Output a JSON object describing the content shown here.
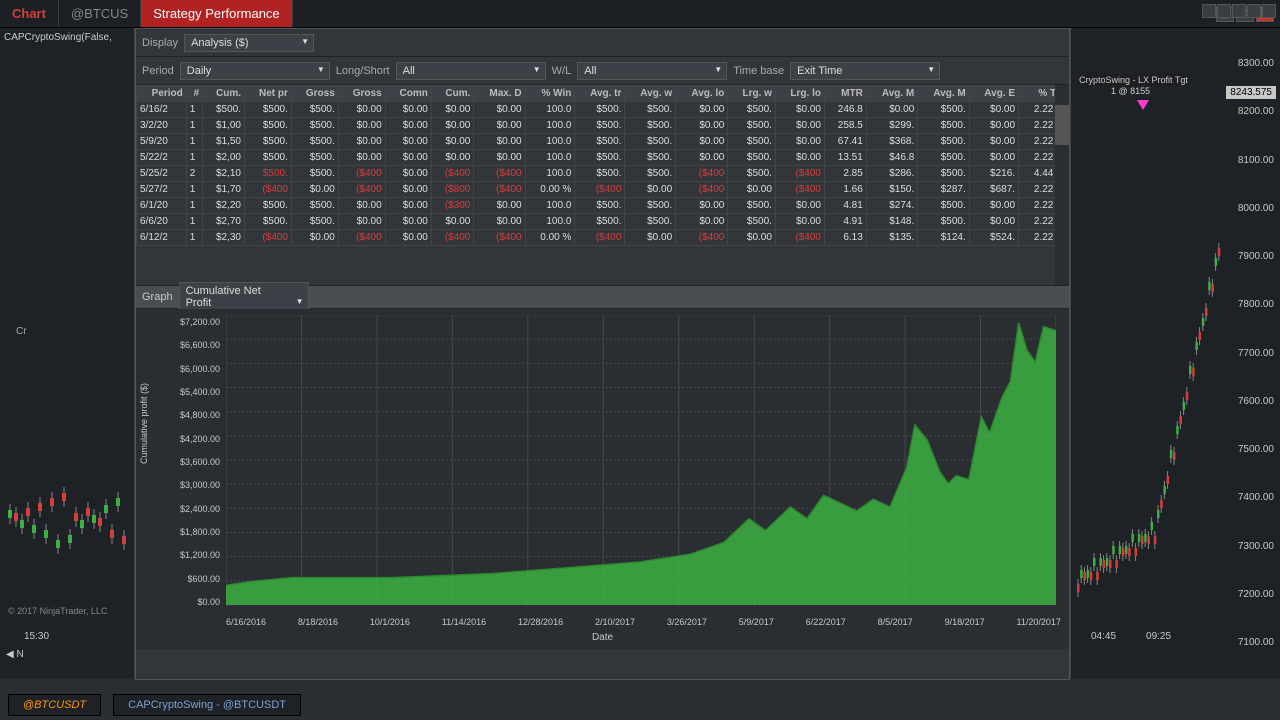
{
  "titlebar": {
    "chart_tab": "Chart",
    "symbol_tab": "@BTCUS",
    "active_tab": "Strategy Performance"
  },
  "left": {
    "indicator": "CAPCryptoSwing(False,",
    "copyright": "© 2017 NinjaTrader, LLC",
    "time": "15:30",
    "nav_sym": "N"
  },
  "controls": {
    "display_label": "Display",
    "display_value": "Analysis ($)",
    "period_label": "Period",
    "period_value": "Daily",
    "ls_label": "Long/Short",
    "ls_value": "All",
    "wl_label": "W/L",
    "wl_value": "All",
    "tb_label": "Time base",
    "tb_value": "Exit Time",
    "graph_label": "Graph",
    "graph_value": "Cumulative Net Profit"
  },
  "table": {
    "headers": [
      "Period",
      "#",
      "Cum.",
      "Net pr",
      "Gross",
      "Gross",
      "Comn",
      "Cum.",
      "Max. D",
      "% Win",
      "Avg. tr",
      "Avg. w",
      "Avg. lo",
      "Lrg. w",
      "Lrg. lo",
      "MTR",
      "Avg. M",
      "Avg. M",
      "Avg. E",
      "% Tra"
    ],
    "rows": [
      [
        "6/16/2",
        "1",
        "$500.",
        "$500.",
        "$500.",
        "$0.00",
        "$0.00",
        "$0.00",
        "$0.00",
        "100.0",
        "$500.",
        "$500.",
        "$0.00",
        "$500.",
        "$0.00",
        "246.8",
        "$0.00",
        "$500.",
        "$0.00",
        "2.22 %"
      ],
      [
        "3/2/20",
        "1",
        "$1,00",
        "$500.",
        "$500.",
        "$0.00",
        "$0.00",
        "$0.00",
        "$0.00",
        "100.0",
        "$500.",
        "$500.",
        "$0.00",
        "$500.",
        "$0.00",
        "258.5",
        "$299.",
        "$500.",
        "$0.00",
        "2.22 %"
      ],
      [
        "5/9/20",
        "1",
        "$1,50",
        "$500.",
        "$500.",
        "$0.00",
        "$0.00",
        "$0.00",
        "$0.00",
        "100.0",
        "$500.",
        "$500.",
        "$0.00",
        "$500.",
        "$0.00",
        "67.41",
        "$368.",
        "$500.",
        "$0.00",
        "2.22 %"
      ],
      [
        "5/22/2",
        "1",
        "$2,00",
        "$500.",
        "$500.",
        "$0.00",
        "$0.00",
        "$0.00",
        "$0.00",
        "100.0",
        "$500.",
        "$500.",
        "$0.00",
        "$500.",
        "$0.00",
        "13.51",
        "$46.8",
        "$500.",
        "$0.00",
        "2.22 %"
      ],
      [
        "5/25/2",
        "2",
        "$2,10",
        "$500.",
        "$500.",
        "($400",
        "$0.00",
        "($400",
        "($400",
        "100.0",
        "$500.",
        "$500.",
        "($400",
        "$500.",
        "($400",
        "2.85",
        "$286.",
        "$500.",
        "$216.",
        "4.44 %"
      ],
      [
        "5/27/2",
        "1",
        "$1,70",
        "($400",
        "$0.00",
        "($400",
        "$0.00",
        "($800",
        "($400",
        "0.00 %",
        "($400",
        "$0.00",
        "($400",
        "$0.00",
        "($400",
        "1.66",
        "$150.",
        "$287.",
        "$687.",
        "2.22 %"
      ],
      [
        "6/1/20",
        "1",
        "$2,20",
        "$500.",
        "$500.",
        "$0.00",
        "$0.00",
        "($300",
        "$0.00",
        "100.0",
        "$500.",
        "$500.",
        "$0.00",
        "$500.",
        "$0.00",
        "4.81",
        "$274.",
        "$500.",
        "$0.00",
        "2.22 %"
      ],
      [
        "6/6/20",
        "1",
        "$2,70",
        "$500.",
        "$500.",
        "$0.00",
        "$0.00",
        "$0.00",
        "$0.00",
        "100.0",
        "$500.",
        "$500.",
        "$0.00",
        "$500.",
        "$0.00",
        "4.91",
        "$148.",
        "$500.",
        "$0.00",
        "2.22 %"
      ],
      [
        "6/12/2",
        "1",
        "$2,30",
        "($400",
        "$0.00",
        "($400",
        "$0.00",
        "($400",
        "($400",
        "0.00 %",
        "($400",
        "$0.00",
        "($400",
        "$0.00",
        "($400",
        "6.13",
        "$135.",
        "$124.",
        "$524.",
        "2.22 %"
      ]
    ],
    "neg_cells": {
      "4": [
        3,
        5,
        7,
        8,
        12,
        14
      ],
      "5": [
        3,
        5,
        7,
        8,
        10,
        12,
        14
      ],
      "6": [
        7
      ],
      "8": [
        3,
        5,
        7,
        8,
        10,
        12,
        14
      ]
    }
  },
  "chart": {
    "type": "area",
    "y_title": "Cumulative profit ($)",
    "x_title": "Date",
    "y_ticks": [
      "$7,200.00",
      "$6,600.00",
      "$6,000.00",
      "$5,400.00",
      "$4,800.00",
      "$4,200.00",
      "$3,600.00",
      "$3,000.00",
      "$2,400.00",
      "$1,800.00",
      "$1,200.00",
      "$600.00",
      "$0.00"
    ],
    "x_ticks": [
      "6/16/2016",
      "8/18/2016",
      "10/1/2016",
      "11/14/2016",
      "12/28/2016",
      "2/10/2017",
      "3/26/2017",
      "5/9/2017",
      "6/22/2017",
      "8/5/2017",
      "9/18/2017",
      "11/20/2017"
    ],
    "fill_color": "#3cb043",
    "stroke_color": "#2e8b2e",
    "grid_color": "#454950",
    "points": [
      [
        0,
        500
      ],
      [
        30,
        600
      ],
      [
        80,
        700
      ],
      [
        140,
        700
      ],
      [
        200,
        700
      ],
      [
        260,
        750
      ],
      [
        320,
        800
      ],
      [
        380,
        900
      ],
      [
        440,
        1000
      ],
      [
        500,
        1100
      ],
      [
        560,
        1300
      ],
      [
        600,
        1600
      ],
      [
        630,
        2200
      ],
      [
        650,
        1900
      ],
      [
        680,
        2500
      ],
      [
        700,
        2200
      ],
      [
        720,
        2800
      ],
      [
        740,
        2600
      ],
      [
        760,
        2400
      ],
      [
        780,
        2700
      ],
      [
        800,
        2500
      ],
      [
        820,
        3500
      ],
      [
        830,
        4600
      ],
      [
        845,
        4200
      ],
      [
        860,
        3400
      ],
      [
        870,
        3100
      ],
      [
        880,
        3300
      ],
      [
        895,
        3200
      ],
      [
        910,
        4800
      ],
      [
        920,
        4400
      ],
      [
        935,
        5300
      ],
      [
        945,
        5700
      ],
      [
        955,
        7200
      ],
      [
        965,
        6500
      ],
      [
        975,
        6200
      ],
      [
        985,
        7100
      ],
      [
        1000,
        7000
      ]
    ],
    "xmax": 1000,
    "ymax": 7400
  },
  "right_chart": {
    "annotation": "CryptoSwing - LX Profit Tgt",
    "annotation2": "1 @ 8155",
    "price": "8243.575",
    "y_ticks": [
      "8300.00",
      "8200.00",
      "8100.00",
      "8000.00",
      "7900.00",
      "7800.00",
      "7700.00",
      "7600.00",
      "7500.00",
      "7400.00",
      "7300.00",
      "7200.00",
      "7100.00"
    ],
    "times": [
      "04:45",
      "09:25"
    ]
  },
  "bottom": {
    "sym": "@BTCUSDT",
    "strategy": "CAPCryptoSwing - @BTCUSDT"
  }
}
